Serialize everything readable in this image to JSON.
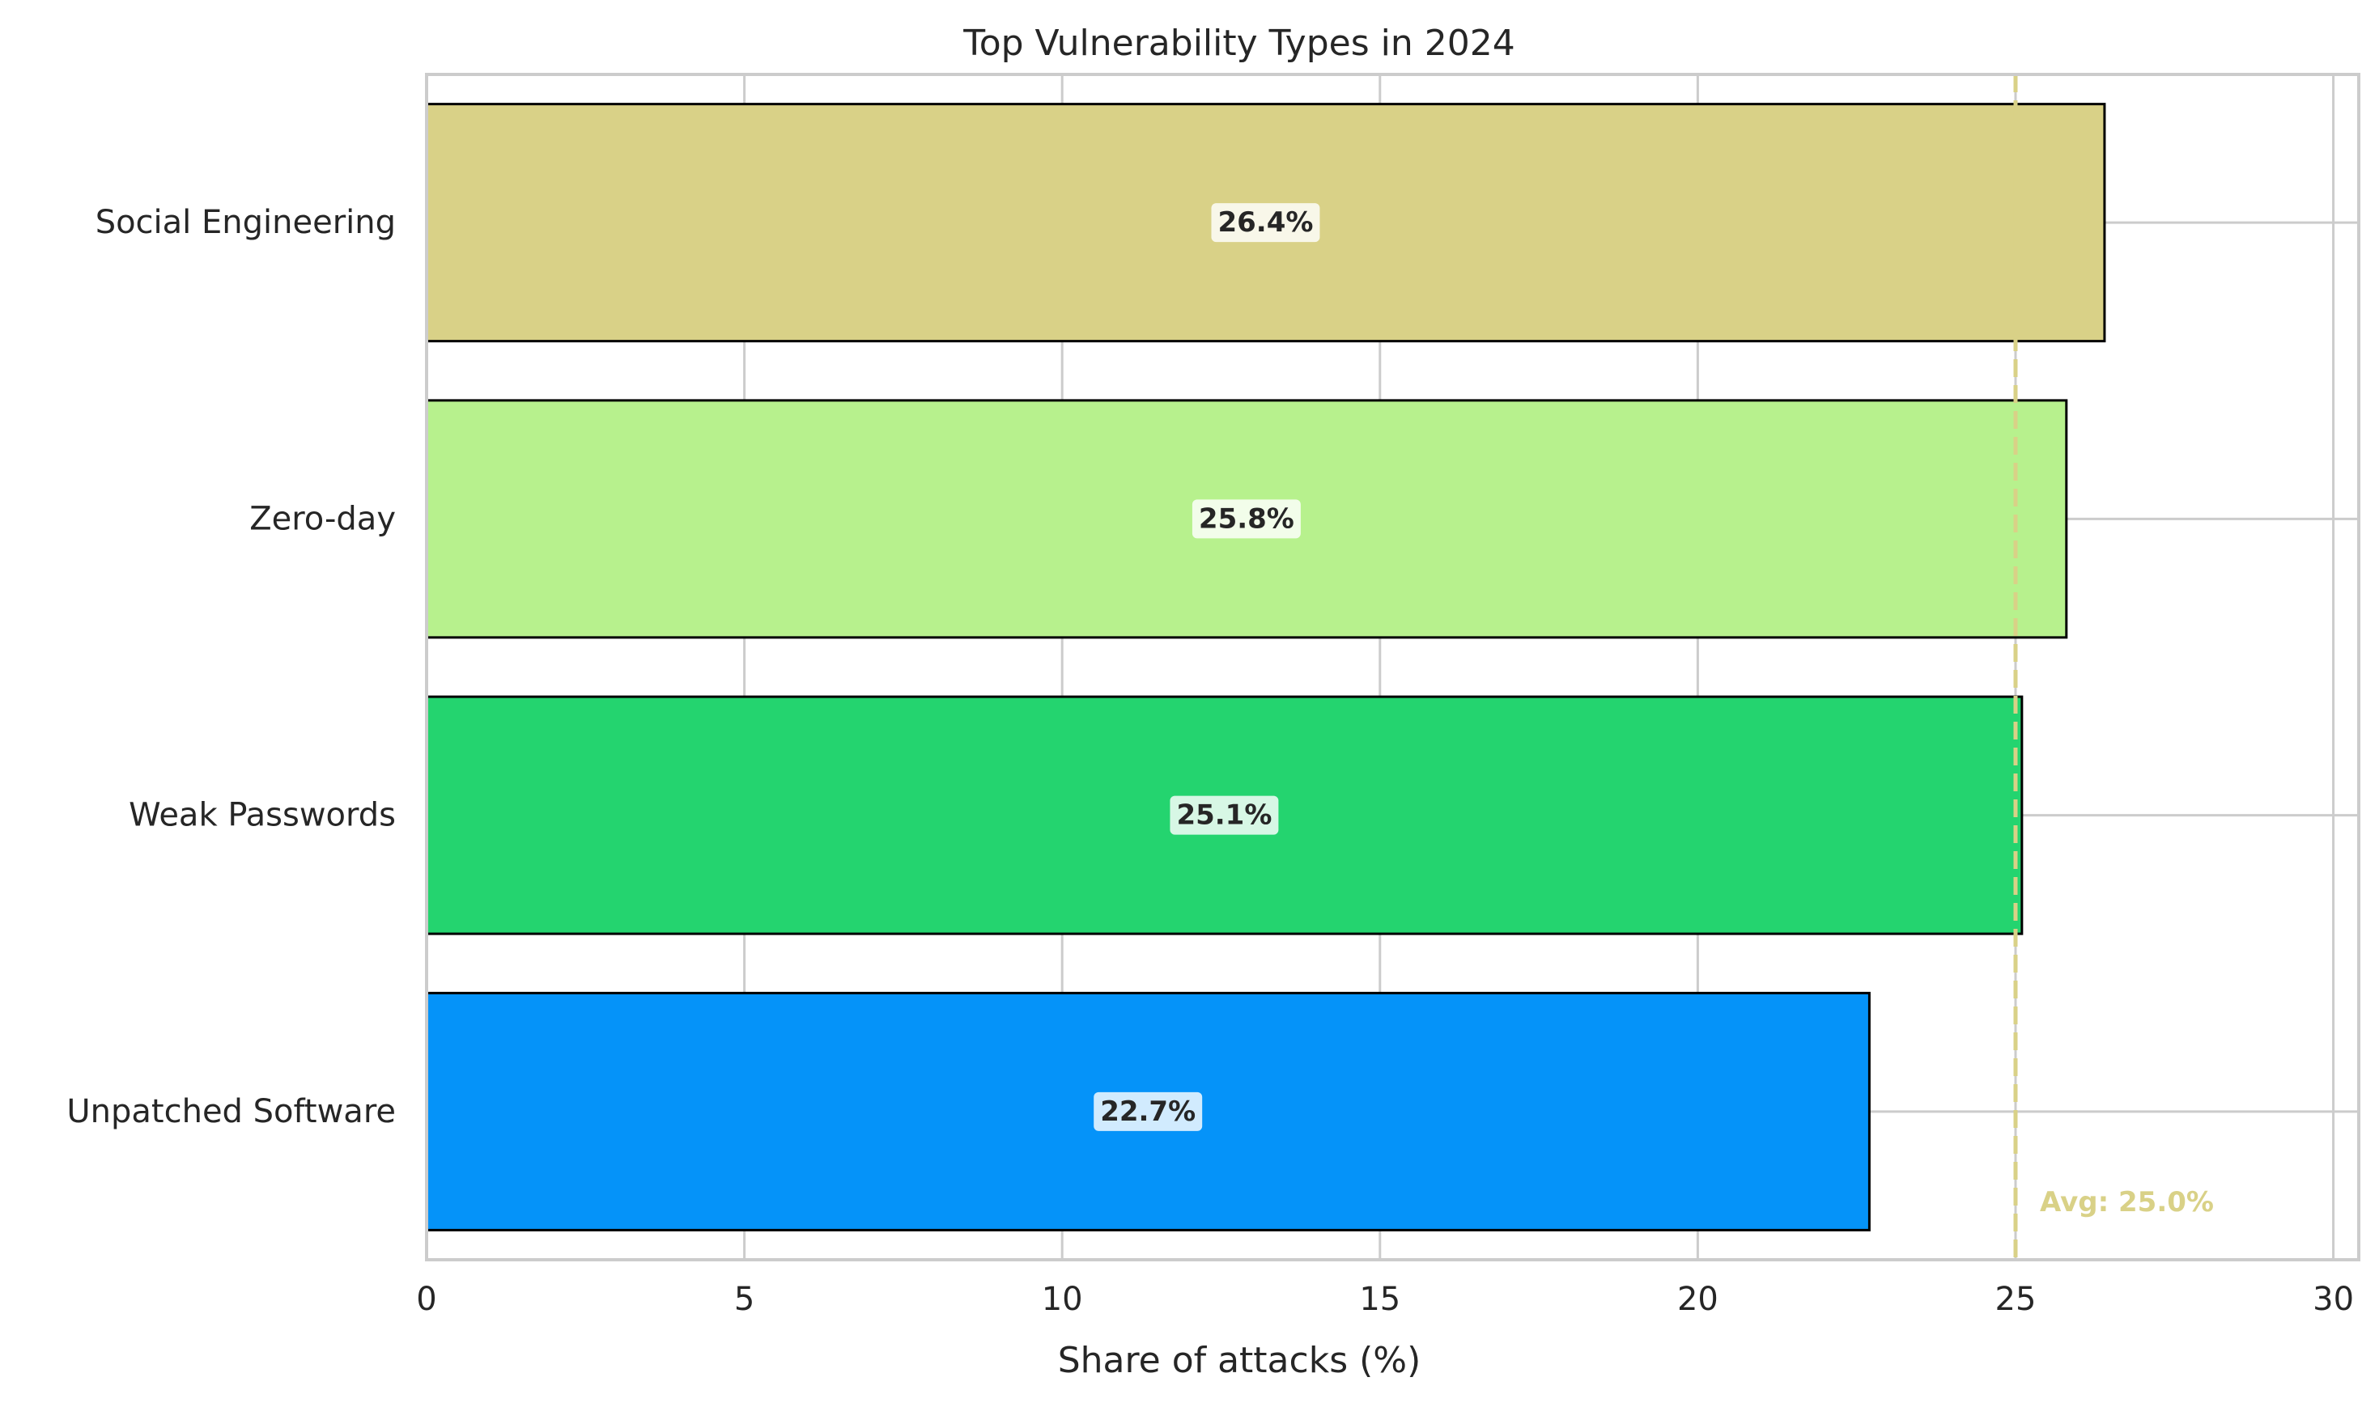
{
  "chart_data": {
    "type": "bar",
    "orientation": "horizontal",
    "title": "Top Vulnerability Types in 2024",
    "xlabel": "Share of attacks (%)",
    "ylabel": "",
    "xlim": [
      0,
      30.4
    ],
    "xticks": [
      0,
      5,
      10,
      15,
      20,
      25,
      30
    ],
    "grid": true,
    "categories": [
      "Social Engineering",
      "Zero-day",
      "Weak Passwords",
      "Unpatched Software"
    ],
    "values": [
      26.4,
      25.8,
      25.1,
      22.7
    ],
    "value_labels": [
      "26.4%",
      "25.8%",
      "25.1%",
      "22.7%"
    ],
    "bar_colors": [
      "#d9d187",
      "#b7f18d",
      "#24d46f",
      "#0593f9"
    ],
    "reference_line": {
      "value": 25.0,
      "label": "Avg: 25.0%",
      "color": "#d9d187",
      "style": "dashed"
    }
  }
}
